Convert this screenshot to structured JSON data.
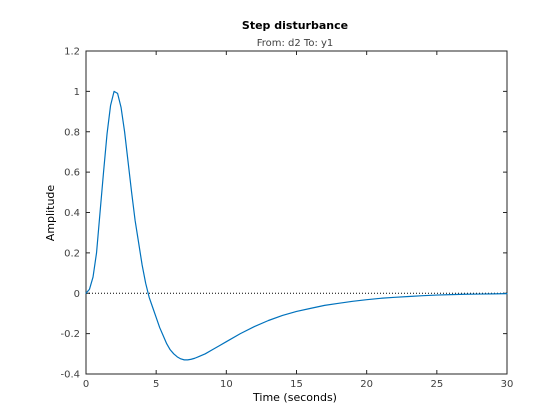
{
  "chart_data": {
    "type": "line",
    "title": "Step disturbance",
    "subtitle": "From: d2  To: y1",
    "xlabel": "Time (seconds)",
    "ylabel": "Amplitude",
    "xlim": [
      0,
      30
    ],
    "ylim": [
      -0.4,
      1.2
    ],
    "xticks": [
      0,
      5,
      10,
      15,
      20,
      25,
      30
    ],
    "yticks": [
      -0.4,
      -0.2,
      0,
      0.2,
      0.4,
      0.6,
      0.8,
      1,
      1.2
    ],
    "xtick_labels": [
      "0",
      "5",
      "10",
      "15",
      "20",
      "25",
      "30"
    ],
    "ytick_labels": [
      "-0.4",
      "-0.2",
      "0",
      "0.2",
      "0.4",
      "0.6",
      "0.8",
      "1",
      "1.2"
    ],
    "grid": false,
    "reference_line": {
      "y": 0,
      "style": "dotted",
      "color": "#000000"
    },
    "series": [
      {
        "color": "#0072bd",
        "x": [
          0,
          0.25,
          0.5,
          0.75,
          1.0,
          1.25,
          1.5,
          1.75,
          2.0,
          2.25,
          2.5,
          2.75,
          3.0,
          3.25,
          3.5,
          3.75,
          4.0,
          4.25,
          4.5,
          4.75,
          5.0,
          5.25,
          5.5,
          5.75,
          6.0,
          6.25,
          6.5,
          6.75,
          7.0,
          7.25,
          7.5,
          7.75,
          8.0,
          8.5,
          9.0,
          9.5,
          10.0,
          11.0,
          12.0,
          13.0,
          14.0,
          15.0,
          16.0,
          17.0,
          18.0,
          19.0,
          20.0,
          21.0,
          22.0,
          23.0,
          24.0,
          25.0,
          26.0,
          27.0,
          28.0,
          29.0,
          30.0
        ],
        "y": [
          0,
          0.02,
          0.08,
          0.2,
          0.4,
          0.6,
          0.79,
          0.93,
          1.0,
          0.99,
          0.92,
          0.8,
          0.65,
          0.5,
          0.36,
          0.25,
          0.14,
          0.05,
          -0.02,
          -0.07,
          -0.12,
          -0.17,
          -0.21,
          -0.25,
          -0.28,
          -0.3,
          -0.315,
          -0.325,
          -0.33,
          -0.33,
          -0.327,
          -0.322,
          -0.315,
          -0.3,
          -0.28,
          -0.26,
          -0.24,
          -0.2,
          -0.165,
          -0.135,
          -0.11,
          -0.09,
          -0.075,
          -0.06,
          -0.05,
          -0.04,
          -0.032,
          -0.025,
          -0.02,
          -0.016,
          -0.012,
          -0.009,
          -0.007,
          -0.005,
          -0.004,
          -0.003,
          -0.002
        ]
      }
    ]
  }
}
